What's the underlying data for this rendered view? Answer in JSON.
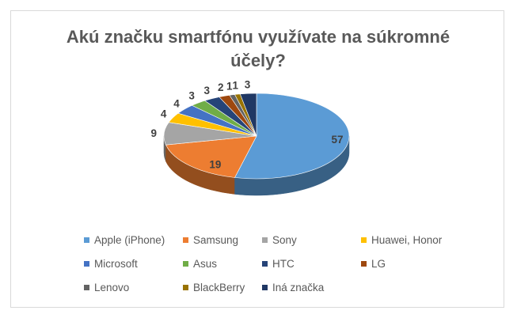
{
  "chart_data": {
    "type": "pie",
    "style": "3d",
    "title": "Akú značku smartfónu využívate na súkromné účely?",
    "title_lines": [
      "Akú značku smartfónu využívate na súkromné",
      "účely?"
    ],
    "legend_position": "bottom",
    "categories": [
      "Apple (iPhone)",
      "Samsung",
      "Sony",
      "Huawei, Honor",
      "Microsoft",
      "Asus",
      "HTC",
      "LG",
      "Lenovo",
      "BlackBerry",
      "Iná značka"
    ],
    "values": [
      57,
      19,
      9,
      4,
      4,
      3,
      3,
      2,
      1,
      1,
      3
    ],
    "colors": [
      "#5b9bd5",
      "#ed7d31",
      "#a5a5a5",
      "#ffc000",
      "#4472c4",
      "#70ad47",
      "#264478",
      "#9e480e",
      "#636363",
      "#997300",
      "#203864"
    ]
  }
}
